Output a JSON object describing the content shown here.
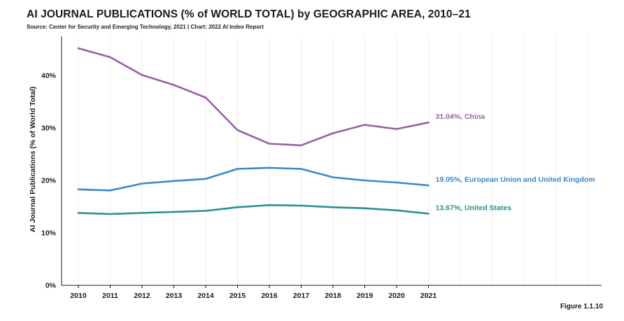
{
  "header": {
    "title": "AI JOURNAL PUBLICATIONS (% of WORLD TOTAL) by GEOGRAPHIC AREA, 2010–21",
    "source": "Source: Center for Security and Emerging Technology, 2021 | Chart: 2022 AI Index Report"
  },
  "figure_label": "Figure 1.1.10",
  "chart_data": {
    "type": "line",
    "title": "AI JOURNAL PUBLICATIONS (% of WORLD TOTAL) by GEOGRAPHIC AREA, 2010–21",
    "xlabel": "",
    "ylabel": "AI Journal Publications (% of World Total)",
    "x": [
      2010,
      2011,
      2012,
      2013,
      2014,
      2015,
      2016,
      2017,
      2018,
      2019,
      2020,
      2021
    ],
    "ylim": [
      0,
      46
    ],
    "yticks": [
      0,
      10,
      20,
      30,
      40
    ],
    "ytick_labels": [
      "0%",
      "10%",
      "20%",
      "30%",
      "40%"
    ],
    "grid": "vertical",
    "series": [
      {
        "name": "China",
        "color": "#9b5ea7",
        "label": "31.04%, China",
        "values": [
          45.2,
          43.5,
          40.1,
          38.2,
          35.8,
          29.6,
          27.0,
          26.7,
          29.0,
          30.6,
          29.8,
          31.04
        ]
      },
      {
        "name": "European Union and United Kingdom",
        "color": "#3d88c4",
        "label": "19.05%, European Union and United Kingdom",
        "values": [
          18.3,
          18.1,
          19.4,
          19.9,
          20.3,
          22.2,
          22.4,
          22.2,
          20.6,
          20.0,
          19.6,
          19.05
        ]
      },
      {
        "name": "United States",
        "color": "#21928f",
        "label": "13.67%, United States",
        "values": [
          13.8,
          13.6,
          13.8,
          14.0,
          14.2,
          14.9,
          15.3,
          15.2,
          14.9,
          14.7,
          14.3,
          13.67
        ]
      }
    ]
  }
}
